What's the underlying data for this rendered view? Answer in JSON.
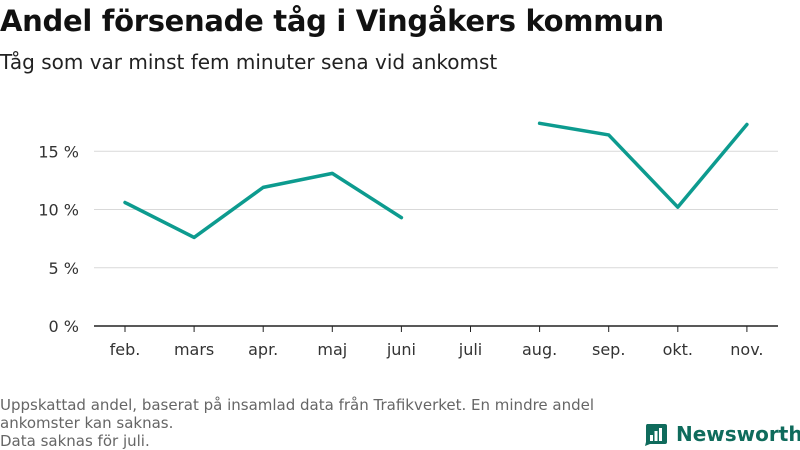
{
  "title": "Andel försenade tåg i Vingåkers kommun",
  "subtitle": "Tåg som var minst fem minuter sena vid ankomst",
  "footer": {
    "note_line1": "Uppskattad andel, baserat på insamlad data från Trafikverket. En mindre andel ankomster kan saknas.",
    "note_line2": "Data saknas för juli."
  },
  "brand": {
    "name": "Newsworthy",
    "icon": "bar-chart-logo-icon",
    "color": "#0f6b5c"
  },
  "chart_data": {
    "type": "line",
    "categories": [
      "feb.",
      "mars",
      "apr.",
      "maj",
      "juni",
      "juli",
      "aug.",
      "sep.",
      "okt.",
      "nov."
    ],
    "series": [
      {
        "values": [
          10.6,
          7.6,
          11.9,
          13.1,
          9.3,
          null,
          17.4,
          16.4,
          10.2,
          17.3
        ],
        "color": "#0d9b8f"
      }
    ],
    "y_ticks": [
      "0 %",
      "5 %",
      "10 %",
      "15 %"
    ],
    "ylim": [
      0,
      20
    ],
    "grid": true,
    "legend": "none"
  }
}
